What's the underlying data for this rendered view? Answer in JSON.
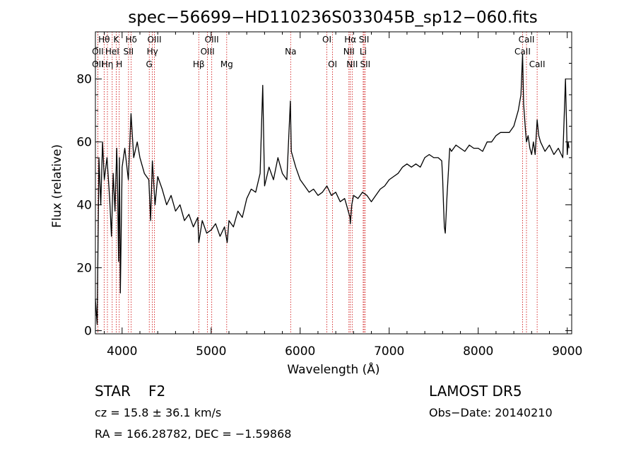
{
  "chart_data": {
    "type": "line",
    "title": "spec−56699−HD110236S033045B_sp12−060.fits",
    "xlabel": "Wavelength (Å)",
    "ylabel": "Flux (relative)",
    "xlim": [
      3700,
      9050
    ],
    "ylim": [
      -1,
      95
    ],
    "xticks": [
      4000,
      5000,
      6000,
      7000,
      8000,
      9000
    ],
    "yticks": [
      0,
      20,
      40,
      60,
      80
    ],
    "series_color": "#000000",
    "line_marker_color": "#cc0000",
    "spectrum": {
      "x": [
        3700,
        3720,
        3740,
        3760,
        3780,
        3800,
        3830,
        3860,
        3880,
        3900,
        3920,
        3940,
        3950,
        3960,
        3970,
        3980,
        4000,
        4030,
        4070,
        4100,
        4130,
        4170,
        4200,
        4250,
        4300,
        4320,
        4340,
        4370,
        4400,
        4450,
        4500,
        4550,
        4600,
        4650,
        4700,
        4750,
        4800,
        4850,
        4861,
        4900,
        4950,
        5000,
        5050,
        5100,
        5150,
        5180,
        5200,
        5250,
        5300,
        5350,
        5400,
        5450,
        5500,
        5550,
        5580,
        5600,
        5650,
        5700,
        5750,
        5800,
        5850,
        5890,
        5900,
        5950,
        6000,
        6050,
        6100,
        6150,
        6200,
        6250,
        6300,
        6350,
        6400,
        6450,
        6500,
        6520,
        6560,
        6563,
        6580,
        6600,
        6650,
        6700,
        6750,
        6800,
        6850,
        6900,
        6950,
        7000,
        7050,
        7100,
        7150,
        7200,
        7250,
        7300,
        7350,
        7400,
        7450,
        7500,
        7550,
        7590,
        7600,
        7610,
        7620,
        7630,
        7650,
        7680,
        7700,
        7750,
        7800,
        7850,
        7900,
        7950,
        8000,
        8050,
        8100,
        8150,
        8200,
        8250,
        8300,
        8350,
        8400,
        8450,
        8480,
        8498,
        8510,
        8530,
        8542,
        8560,
        8580,
        8600,
        8620,
        8640,
        8662,
        8680,
        8700,
        8750,
        8800,
        8850,
        8900,
        8950,
        8980,
        9000,
        9010,
        9020
      ],
      "y": [
        10,
        2,
        55,
        40,
        60,
        48,
        55,
        42,
        30,
        50,
        38,
        58,
        44,
        22,
        55,
        12,
        52,
        58,
        48,
        69,
        55,
        60,
        55,
        50,
        48,
        35,
        54,
        40,
        49,
        45,
        40,
        43,
        38,
        40,
        35,
        37,
        33,
        36,
        28,
        35,
        31,
        32,
        34,
        30,
        33,
        28,
        35,
        33,
        38,
        36,
        42,
        45,
        44,
        50,
        78,
        46,
        52,
        48,
        55,
        50,
        48,
        73,
        57,
        52,
        48,
        46,
        44,
        45,
        43,
        44,
        46,
        43,
        44,
        41,
        42,
        40,
        36,
        34,
        40,
        43,
        42,
        44,
        43,
        41,
        43,
        45,
        46,
        48,
        49,
        50,
        52,
        53,
        52,
        53,
        52,
        55,
        56,
        55,
        55,
        54,
        49,
        40,
        33,
        31,
        43,
        58,
        57,
        59,
        58,
        57,
        59,
        58,
        58,
        57,
        60,
        60,
        62,
        63,
        63,
        63,
        65,
        70,
        75,
        88,
        72,
        64,
        60,
        62,
        58,
        56,
        60,
        56,
        67,
        62,
        60,
        57,
        59,
        56,
        58,
        55,
        80,
        56,
        60,
        58
      ]
    },
    "line_markers": [
      {
        "label": "Hθ",
        "x": 3798,
        "row": 0
      },
      {
        "label": "K",
        "x": 3934,
        "row": 0
      },
      {
        "label": "Hδ",
        "x": 4102,
        "row": 0
      },
      {
        "label": "OIII",
        "x": 4363,
        "row": 0
      },
      {
        "label": "OIII",
        "x": 5007,
        "row": 0
      },
      {
        "label": "OI",
        "x": 6300,
        "row": 0
      },
      {
        "label": "Hα",
        "x": 6563,
        "row": 0
      },
      {
        "label": "SII",
        "x": 6717,
        "row": 0
      },
      {
        "label": "CaII",
        "x": 8542,
        "row": 0
      },
      {
        "label": "OII",
        "x": 3727,
        "row": 1
      },
      {
        "label": "HeI",
        "x": 3889,
        "row": 1
      },
      {
        "label": "SII",
        "x": 4072,
        "row": 1
      },
      {
        "label": "Hγ",
        "x": 4340,
        "row": 1
      },
      {
        "label": "OIII",
        "x": 4959,
        "row": 1
      },
      {
        "label": "Na",
        "x": 5893,
        "row": 1
      },
      {
        "label": "NII",
        "x": 6548,
        "row": 1
      },
      {
        "label": "Li",
        "x": 6708,
        "row": 1
      },
      {
        "label": "CaII",
        "x": 8498,
        "row": 1
      },
      {
        "label": "OII",
        "x": 3727,
        "row": 2
      },
      {
        "label": "Hη",
        "x": 3835,
        "row": 2
      },
      {
        "label": "H",
        "x": 3968,
        "row": 2
      },
      {
        "label": "G",
        "x": 4305,
        "row": 2
      },
      {
        "label": "Hβ",
        "x": 4861,
        "row": 2
      },
      {
        "label": "Mg",
        "x": 5175,
        "row": 2
      },
      {
        "label": "OI",
        "x": 6364,
        "row": 2
      },
      {
        "label": "NII",
        "x": 6584,
        "row": 2
      },
      {
        "label": "SII",
        "x": 6731,
        "row": 2
      },
      {
        "label": "CaII",
        "x": 8662,
        "row": 2
      }
    ]
  },
  "info": {
    "object_class": "STAR",
    "subclass": "F2",
    "survey": "LAMOST DR5",
    "redshift": "cz = 15.8 ± 36.1 km/s",
    "obs_date": "Obs−Date: 20140210",
    "coords": "RA = 166.28782, DEC =  −1.59868"
  }
}
